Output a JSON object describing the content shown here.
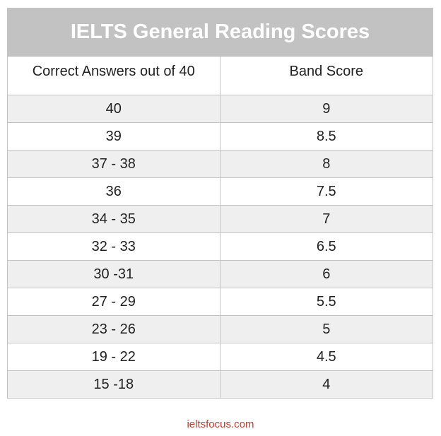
{
  "table": {
    "title": "IELTS General Reading Scores",
    "headers": [
      "Correct Answers out of 40",
      "Band Score"
    ],
    "rows": [
      [
        "40",
        "9"
      ],
      [
        "39",
        "8.5"
      ],
      [
        "37 - 38",
        "8"
      ],
      [
        "36",
        "7.5"
      ],
      [
        "34 - 35",
        "7"
      ],
      [
        "32 - 33",
        "6.5"
      ],
      [
        "30 -31",
        "6"
      ],
      [
        "27 - 29",
        "5.5"
      ],
      [
        "23 - 26",
        "5"
      ],
      [
        "19 - 22",
        "4.5"
      ],
      [
        "15 -18",
        "4"
      ]
    ]
  },
  "footer": {
    "source": "ieltsfocus.com"
  },
  "colors": {
    "title_bar": "#c2c2c2",
    "stripe": "#efefef",
    "footer_text": "#c0392b"
  }
}
